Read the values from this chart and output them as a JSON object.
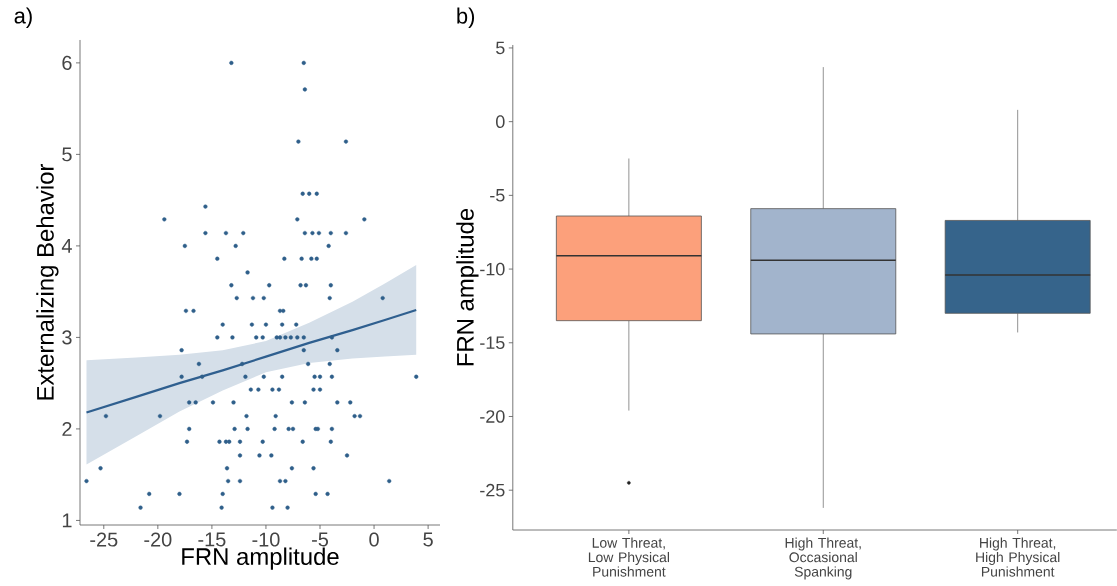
{
  "chart_data": [
    {
      "type": "scatter",
      "title": "a)",
      "xlabel": "FRN amplitude",
      "ylabel": "Externalizing Behavior",
      "xlim": [
        -27.2,
        6.1
      ],
      "ylim": [
        0.95,
        6.25
      ],
      "xticks": [
        -25,
        -20,
        -15,
        -10,
        -5,
        0,
        5
      ],
      "yticks": [
        1,
        2,
        3,
        4,
        5,
        6
      ],
      "grid": false,
      "series": [
        {
          "type": "scatter",
          "marker": "circle",
          "color": "#2f5f8a",
          "x": [
            -13.2,
            -15.6,
            -19.4,
            -15.6,
            -13.7,
            -12.1,
            -17.5,
            -12.8,
            -14.5,
            -11.7,
            -13.2,
            -6.5,
            -6.4,
            -7.0,
            -2.6,
            -6.6,
            -6.0,
            -5.3,
            -7.1,
            -0.9,
            -6.4,
            -5.7,
            -5.1,
            -4.0,
            -2.6,
            -4.2,
            -8.3,
            -6.7,
            -5.8,
            -5.3,
            -9.7,
            -6.8,
            -6.3,
            -4.0,
            -12.7,
            -11.2,
            -17.4,
            -16.7,
            -14.0,
            -11.3,
            -14.5,
            -13.1,
            -10.9,
            -17.8,
            -16.2,
            -12.2,
            -17.8,
            -11.9,
            -15.9,
            -11.4,
            -10.7,
            -17.1,
            -16.5,
            -14.9,
            -13.0,
            -24.8,
            -19.8,
            -11.8,
            -17.1,
            -12.9,
            -11.7,
            -17.3,
            -14.3,
            -13.7,
            -13.4,
            -12.4,
            -12.4,
            -10.6,
            -25.3,
            -13.6,
            -26.6,
            -13.5,
            -12.4,
            -20.8,
            -18.0,
            -14.0,
            -21.6,
            -14.1,
            -10.2,
            -4.1,
            0.8,
            -8.7,
            -8.4,
            -10.0,
            -8.5,
            -7.2,
            -10.3,
            -9.0,
            -8.7,
            -8.2,
            -7.7,
            -7.1,
            -6.5,
            -3.9,
            -6.5,
            -3.4,
            -6.1,
            -4.1,
            -10.2,
            -8.5,
            -5.5,
            -5.0,
            -3.9,
            3.9,
            -9.4,
            -8.8,
            -5.6,
            -5.0,
            -7.6,
            -6.4,
            -3.4,
            -2.2,
            -9.1,
            -1.8,
            -1.3,
            -9.2,
            -7.9,
            -7.5,
            -5.4,
            -5.2,
            -3.9,
            -10.3,
            -6.6,
            -4.0,
            -9.5,
            -2.5,
            -7.6,
            -5.6,
            -8.7,
            -8.2,
            1.4,
            -5.4,
            -4.3,
            -9.4,
            -8.0
          ],
          "values": [
            6.0,
            4.43,
            4.29,
            4.14,
            4.14,
            4.14,
            4.0,
            4.0,
            3.86,
            3.71,
            3.57,
            6.0,
            5.71,
            5.14,
            5.14,
            4.57,
            4.57,
            4.57,
            4.29,
            4.29,
            4.14,
            4.14,
            4.14,
            4.14,
            4.14,
            4.0,
            3.86,
            3.86,
            3.86,
            3.86,
            3.57,
            3.57,
            3.57,
            3.57,
            3.43,
            3.43,
            3.29,
            3.29,
            3.14,
            3.14,
            3.0,
            3.0,
            3.0,
            2.86,
            2.71,
            2.71,
            2.57,
            2.57,
            2.57,
            2.43,
            2.43,
            2.29,
            2.29,
            2.29,
            2.29,
            2.14,
            2.14,
            2.14,
            2.0,
            2.0,
            2.0,
            1.86,
            1.86,
            1.86,
            1.86,
            1.86,
            1.71,
            1.71,
            1.57,
            1.57,
            1.43,
            1.43,
            1.43,
            1.29,
            1.29,
            1.29,
            1.14,
            1.14,
            3.43,
            3.43,
            3.43,
            3.29,
            3.29,
            3.14,
            3.14,
            3.14,
            3.0,
            3.0,
            3.0,
            3.0,
            3.0,
            3.0,
            3.0,
            3.0,
            2.86,
            2.86,
            2.71,
            2.71,
            2.57,
            2.57,
            2.57,
            2.57,
            2.57,
            2.57,
            2.43,
            2.43,
            2.43,
            2.43,
            2.29,
            2.29,
            2.29,
            2.29,
            2.14,
            2.14,
            2.14,
            2.0,
            2.0,
            2.0,
            2.0,
            2.0,
            2.0,
            1.86,
            1.86,
            1.86,
            1.71,
            1.71,
            1.57,
            1.57,
            1.43,
            1.43,
            1.43,
            1.29,
            1.29,
            1.14,
            1.14
          ]
        },
        {
          "type": "line",
          "color": "#2f5f8f",
          "x": [
            -26.6,
            -22,
            -18,
            -14,
            -10,
            -6,
            -2,
            1,
            3.9
          ],
          "values": [
            2.18,
            2.35,
            2.5,
            2.64,
            2.79,
            2.94,
            3.08,
            3.19,
            3.3
          ],
          "lower": [
            1.61,
            1.92,
            2.19,
            2.42,
            2.62,
            2.72,
            2.77,
            2.79,
            2.81
          ],
          "upper": [
            2.75,
            2.78,
            2.81,
            2.86,
            2.96,
            3.16,
            3.39,
            3.59,
            3.79
          ]
        }
      ]
    },
    {
      "type": "box",
      "title": "b)",
      "ylabel": "FRN amplitude",
      "ylim": [
        -27.7,
        5.2
      ],
      "yticks": [
        -25,
        -20,
        -15,
        -10,
        -5,
        0,
        5
      ],
      "grid": false,
      "categories": [
        "Low Threat, Low Physical Punishment",
        "High Threat, Occasional Spanking",
        "High Threat, High Physical Punishment"
      ],
      "colors": [
        "#fca07b",
        "#a2b4cc",
        "#36648b"
      ],
      "boxes": [
        {
          "low": -19.6,
          "q1": -13.5,
          "median": -9.1,
          "q3": -6.4,
          "high": -2.5,
          "outliers": [
            -24.5
          ]
        },
        {
          "low": -26.2,
          "q1": -14.4,
          "median": -9.4,
          "q3": -5.9,
          "high": 3.7
        },
        {
          "low": -14.3,
          "q1": -13.0,
          "median": -10.4,
          "q3": -6.7,
          "high": 0.8
        }
      ]
    }
  ]
}
